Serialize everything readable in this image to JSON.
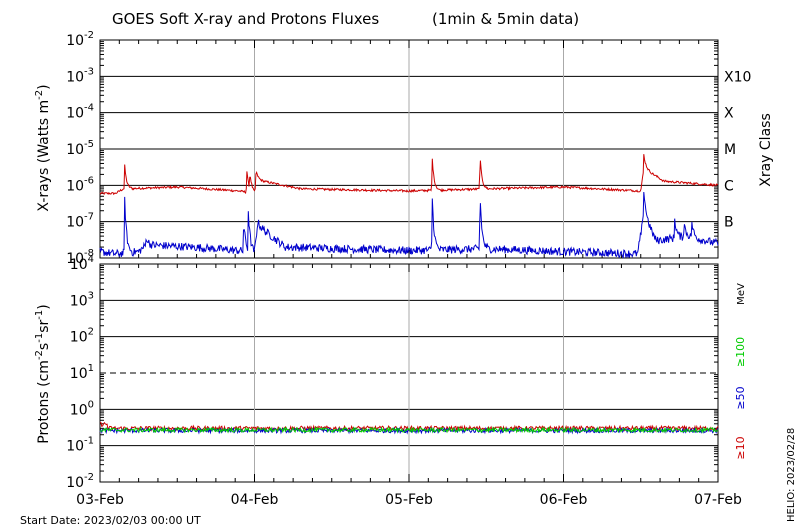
{
  "title": "GOES Soft X-ray and Protons Fluxes",
  "title_suffix": "(1min & 5min data)",
  "start_date": "Start Date: 2023/02/03 00:00 UT",
  "helio_stamp": "HELIO: 2023/02/28",
  "x_ticks": [
    "03-Feb",
    "04-Feb",
    "05-Feb",
    "06-Feb",
    "07-Feb"
  ],
  "xray_ylabel": "X-rays (Watts m",
  "xray_ylabel_sup": "-2",
  "xray_ylabel_end": ")",
  "xray_class_label": "Xray Class",
  "xray_classes": [
    {
      "label": "X10",
      "exp": -3
    },
    {
      "label": "X",
      "exp": -4
    },
    {
      "label": "M",
      "exp": -5
    },
    {
      "label": "C",
      "exp": -6
    },
    {
      "label": "B",
      "exp": -7
    }
  ],
  "proton_ylabel": "Protons (cm",
  "proton_ylabel_sup1": "-2",
  "proton_ylabel_mid1": "s",
  "proton_ylabel_sup2": "-1",
  "proton_ylabel_mid2": "sr",
  "proton_ylabel_sup3": "-1",
  "proton_ylabel_end": ")",
  "proton_energy_unit": "MeV",
  "proton_energies": [
    {
      "label": "≥100",
      "color": "#00cc00"
    },
    {
      "label": "≥50",
      "color": "#0000cc"
    },
    {
      "label": "≥10",
      "color": "#cc0000"
    }
  ],
  "colors": {
    "xray_long": "#cc0000",
    "xray_short": "#0000cc",
    "p10": "#cc0000",
    "p50": "#0000cc",
    "p100": "#00cc00"
  },
  "chart_data": [
    {
      "type": "line",
      "title": "GOES Soft X-ray and Protons Fluxes",
      "ylabel": "X-rays (Watts m-2)",
      "yscale": "log",
      "xlim_days": [
        0,
        4
      ],
      "x_tick_labels": [
        "03-Feb",
        "04-Feb",
        "05-Feb",
        "06-Feb",
        "07-Feb"
      ],
      "ylim": [
        1e-08,
        0.01
      ],
      "y_tick_exponents": [
        -8,
        -7,
        -6,
        -5,
        -4,
        -3,
        -2
      ],
      "grid": true,
      "series": [
        {
          "name": "long",
          "baseline": [
            [
              0,
              6e-07
            ],
            [
              0.1,
              6e-07
            ],
            [
              0.15,
              8e-07
            ],
            [
              0.5,
              9e-07
            ],
            [
              0.9,
              7e-07
            ],
            [
              1.0,
              6e-07
            ],
            [
              1.02,
              1.4e-06
            ],
            [
              1.3,
              8e-07
            ],
            [
              2.0,
              7e-07
            ],
            [
              2.5,
              8e-07
            ],
            [
              3.0,
              9e-07
            ],
            [
              3.5,
              7e-07
            ],
            [
              3.52,
              3e-06
            ],
            [
              3.65,
              1.3e-06
            ],
            [
              4.0,
              1e-06
            ]
          ],
          "peaks": [
            [
              0.16,
              3.5e-06
            ],
            [
              0.95,
              2.8e-06
            ],
            [
              0.97,
              2.2e-06
            ],
            [
              1.01,
              2.8e-06
            ],
            [
              2.15,
              6.5e-06
            ],
            [
              2.46,
              6.5e-06
            ],
            [
              3.52,
              7e-06
            ]
          ]
        },
        {
          "name": "short",
          "baseline": [
            [
              0,
              1.5e-08
            ],
            [
              0.1,
              1.3e-08
            ],
            [
              0.25,
              1.5e-08
            ],
            [
              0.3,
              2.3e-08
            ],
            [
              0.6,
              2e-08
            ],
            [
              0.9,
              1.6e-08
            ],
            [
              1.0,
              1.4e-08
            ],
            [
              1.02,
              8e-08
            ],
            [
              1.2,
              2e-08
            ],
            [
              2.0,
              1.6e-08
            ],
            [
              2.5,
              1.8e-08
            ],
            [
              3.0,
              1.5e-08
            ],
            [
              3.48,
              1.3e-08
            ],
            [
              3.52,
              1.5e-07
            ],
            [
              3.6,
              3e-08
            ],
            [
              3.8,
              4e-08
            ],
            [
              4.0,
              2.5e-08
            ]
          ],
          "peaks": [
            [
              0.16,
              4.5e-07
            ],
            [
              0.3,
              4e-08
            ],
            [
              0.93,
              1e-07
            ],
            [
              0.96,
              2e-07
            ],
            [
              1.02,
              1e-07
            ],
            [
              2.15,
              6e-07
            ],
            [
              2.46,
              6e-07
            ],
            [
              3.52,
              8e-07
            ],
            [
              3.72,
              1.3e-07
            ],
            [
              3.78,
              1e-07
            ],
            [
              3.83,
              1e-07
            ]
          ]
        }
      ]
    },
    {
      "type": "line",
      "ylabel": "Protons (cm-2s-1sr-1)",
      "yscale": "log",
      "xlim_days": [
        0,
        4
      ],
      "x_tick_labels": [
        "03-Feb",
        "04-Feb",
        "05-Feb",
        "06-Feb",
        "07-Feb"
      ],
      "ylim": [
        0.01,
        10000
      ],
      "y_tick_exponents": [
        -2,
        -1,
        0,
        1,
        2,
        3,
        4
      ],
      "threshold_dashed": 10,
      "grid": true,
      "series": [
        {
          "name": "≥10",
          "level": 0.3
        },
        {
          "name": "≥50",
          "level": 0.26
        },
        {
          "name": "≥100",
          "level": 0.27
        }
      ]
    }
  ]
}
